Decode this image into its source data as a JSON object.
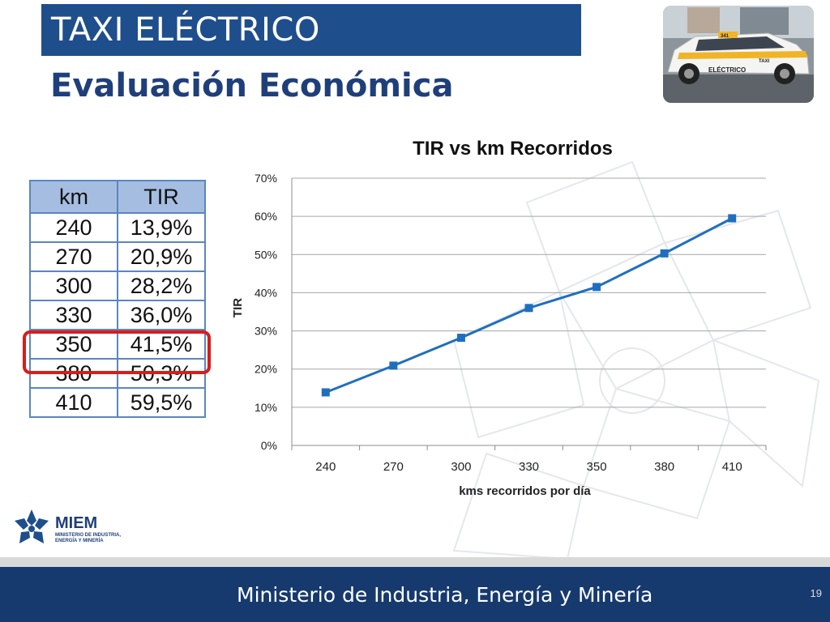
{
  "header": {
    "title": "TAXI ELÉCTRICO",
    "subtitle": "Evaluación Económica"
  },
  "photo": {
    "description_text": "ELÉCTRICO",
    "taxi_sign": "TAXI",
    "number": "341"
  },
  "table": {
    "headers": [
      "km",
      "TIR"
    ],
    "rows": [
      [
        "240",
        "13,9%"
      ],
      [
        "270",
        "20,9%"
      ],
      [
        "300",
        "28,2%"
      ],
      [
        "330",
        "36,0%"
      ],
      [
        "350",
        "41,5%"
      ],
      [
        "380",
        "50,3%"
      ],
      [
        "410",
        "59,5%"
      ]
    ],
    "highlighted_row": 4
  },
  "chart_data": {
    "type": "line",
    "title": "TIR vs km Recorridos",
    "xlabel": "kms recorridos por día",
    "ylabel": "TIR",
    "categories": [
      "240",
      "270",
      "300",
      "330",
      "350",
      "380",
      "410"
    ],
    "series": [
      {
        "values": [
          13.9,
          20.9,
          28.2,
          36.0,
          41.5,
          50.3,
          59.5
        ],
        "color": "#1f6fbf"
      }
    ],
    "ylim": [
      0,
      70
    ],
    "yticks": [
      "0%",
      "10%",
      "20%",
      "30%",
      "40%",
      "50%",
      "60%",
      "70%"
    ],
    "grid": true,
    "legend": "none"
  },
  "logo": {
    "name": "MIEM",
    "subtitle": "Ministerio de Industria, Energía y Minería"
  },
  "footer": {
    "text": "Ministerio de Industria, Energía y Minería",
    "slide_number": "19"
  },
  "colors": {
    "title_bar": "#1f4e8c",
    "subtitle": "#1f3f7a",
    "footer": "#163a6e",
    "table_border": "#5b86c0",
    "table_header": "#a5bde0",
    "highlight": "#d91c1c",
    "series": "#1f6fbf"
  }
}
